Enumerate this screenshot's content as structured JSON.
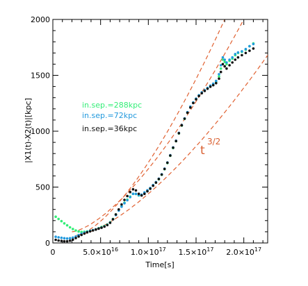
{
  "chart_data": {
    "type": "scatter",
    "xlabel": "Time[s]",
    "ylabel": "|X1(t)-X2(t)|[kpc]",
    "xlim": [
      0,
      2.25e+17
    ],
    "ylim": [
      0,
      2000
    ],
    "x_tick_labels": [
      {
        "value": 0,
        "label": "0"
      },
      {
        "value": 5e+16,
        "base": "5.0×10",
        "exp": "16"
      },
      {
        "value": 1e+17,
        "base": "1.0×10",
        "exp": "17"
      },
      {
        "value": 1.5e+17,
        "base": "1.5×10",
        "exp": "17"
      },
      {
        "value": 2e+17,
        "base": "2.0×10",
        "exp": "17"
      }
    ],
    "y_ticks": [
      0,
      500,
      1000,
      1500,
      2000
    ],
    "grid": false,
    "legend_position": "left",
    "annotation": {
      "base": "t",
      "exp": "3/2",
      "x": 1.6e+17,
      "y": 800
    },
    "colors": {
      "green": "#33ee77",
      "blue": "#2299dd",
      "black": "#111111",
      "fit": "#e06030"
    },
    "series": [
      {
        "name": "in.sep.=288kpc",
        "color": "#33ee77",
        "points": [
          [
            3000000000000000.0,
            235
          ],
          [
            6000000000000000.0,
            215
          ],
          [
            9000000000000000.0,
            195
          ],
          [
            1.2e+16,
            175
          ],
          [
            1.5e+16,
            158
          ],
          [
            1.8e+16,
            140
          ],
          [
            2.1e+16,
            125
          ],
          [
            2.4e+16,
            112
          ],
          [
            2.7e+16,
            103
          ],
          [
            3e+16,
            98
          ],
          [
            3.3e+16,
            100
          ],
          [
            3.6e+16,
            104
          ],
          [
            3.9e+16,
            109
          ],
          [
            4.2e+16,
            115
          ],
          [
            4.5e+16,
            122
          ],
          [
            4.8e+16,
            132
          ],
          [
            5.1e+16,
            142
          ],
          [
            5.4e+16,
            152
          ],
          [
            5.7e+16,
            165
          ],
          [
            6e+16,
            185
          ],
          [
            6.3e+16,
            215
          ],
          [
            6.6e+16,
            255
          ],
          [
            6.9e+16,
            295
          ],
          [
            7.2e+16,
            330
          ],
          [
            7.5e+16,
            360
          ],
          [
            7.8e+16,
            388
          ],
          [
            8.1e+16,
            415
          ],
          [
            8.4e+16,
            440
          ],
          [
            8.7e+16,
            438
          ],
          [
            9e+16,
            425
          ],
          [
            9.3e+16,
            430
          ],
          [
            9.6e+16,
            450
          ],
          [
            9.9e+16,
            470
          ],
          [
            1.02e+17,
            490
          ],
          [
            1.05e+17,
            515
          ],
          [
            1.08e+17,
            540
          ],
          [
            1.11e+17,
            570
          ],
          [
            1.14e+17,
            610
          ],
          [
            1.17e+17,
            660
          ],
          [
            1.2e+17,
            715
          ],
          [
            1.23e+17,
            780
          ],
          [
            1.26e+17,
            850
          ],
          [
            1.29e+17,
            910
          ],
          [
            1.32e+17,
            980
          ],
          [
            1.35e+17,
            1050
          ],
          [
            1.38e+17,
            1110
          ],
          [
            1.41e+17,
            1165
          ],
          [
            1.44e+17,
            1215
          ],
          [
            1.47e+17,
            1255
          ],
          [
            1.5e+17,
            1290
          ],
          [
            1.53e+17,
            1320
          ],
          [
            1.56e+17,
            1345
          ],
          [
            1.59e+17,
            1365
          ],
          [
            1.62e+17,
            1385
          ],
          [
            1.65e+17,
            1405
          ],
          [
            1.68e+17,
            1420
          ],
          [
            1.71e+17,
            1440
          ],
          [
            1.74e+17,
            1490
          ],
          [
            1.76e+17,
            1560
          ],
          [
            1.78e+17,
            1640
          ],
          [
            1.8e+17,
            1620
          ],
          [
            1.82e+17,
            1600
          ],
          [
            1.85e+17,
            1630
          ],
          [
            1.88e+17,
            1650
          ],
          [
            1.91e+17,
            1680
          ],
          [
            1.94e+17,
            1700
          ],
          [
            1.98e+17,
            1710
          ],
          [
            2.02e+17,
            1730
          ],
          [
            2.06e+17,
            1760
          ],
          [
            2.1e+17,
            1785
          ]
        ]
      },
      {
        "name": "in.sep.=72kpc",
        "color": "#2299dd",
        "points": [
          [
            3000000000000000.0,
            55
          ],
          [
            6000000000000000.0,
            50
          ],
          [
            9000000000000000.0,
            46
          ],
          [
            1.2e+16,
            42
          ],
          [
            1.5e+16,
            40
          ],
          [
            1.8e+16,
            42
          ],
          [
            2.1e+16,
            48
          ],
          [
            2.4e+16,
            58
          ],
          [
            2.7e+16,
            70
          ],
          [
            3e+16,
            82
          ],
          [
            3.3e+16,
            92
          ],
          [
            3.6e+16,
            100
          ],
          [
            3.9e+16,
            108
          ],
          [
            4.2e+16,
            115
          ],
          [
            4.5e+16,
            122
          ],
          [
            4.8e+16,
            130
          ],
          [
            5.1e+16,
            138
          ],
          [
            5.4e+16,
            148
          ],
          [
            5.7e+16,
            162
          ],
          [
            6e+16,
            182
          ],
          [
            6.3e+16,
            212
          ],
          [
            6.6e+16,
            250
          ],
          [
            6.9e+16,
            290
          ],
          [
            7.2e+16,
            325
          ],
          [
            7.5e+16,
            355
          ],
          [
            7.8e+16,
            382
          ],
          [
            8.1e+16,
            410
          ],
          [
            8.4e+16,
            440
          ],
          [
            8.7e+16,
            440
          ],
          [
            9e+16,
            428
          ],
          [
            9.3e+16,
            432
          ],
          [
            9.6e+16,
            452
          ],
          [
            9.9e+16,
            472
          ],
          [
            1.02e+17,
            492
          ],
          [
            1.05e+17,
            518
          ],
          [
            1.08e+17,
            545
          ],
          [
            1.11e+17,
            575
          ],
          [
            1.14e+17,
            615
          ],
          [
            1.17e+17,
            665
          ],
          [
            1.2e+17,
            720
          ],
          [
            1.23e+17,
            785
          ],
          [
            1.26e+17,
            855
          ],
          [
            1.29e+17,
            915
          ],
          [
            1.32e+17,
            985
          ],
          [
            1.35e+17,
            1055
          ],
          [
            1.38e+17,
            1115
          ],
          [
            1.41e+17,
            1170
          ],
          [
            1.44e+17,
            1220
          ],
          [
            1.47e+17,
            1258
          ],
          [
            1.5e+17,
            1292
          ],
          [
            1.53e+17,
            1322
          ],
          [
            1.56e+17,
            1347
          ],
          [
            1.59e+17,
            1367
          ],
          [
            1.62e+17,
            1387
          ],
          [
            1.65e+17,
            1408
          ],
          [
            1.68e+17,
            1425
          ],
          [
            1.71e+17,
            1450
          ],
          [
            1.74e+17,
            1510
          ],
          [
            1.76e+17,
            1590
          ],
          [
            1.78e+17,
            1660
          ],
          [
            1.8e+17,
            1640
          ],
          [
            1.82e+17,
            1615
          ],
          [
            1.85e+17,
            1640
          ],
          [
            1.88e+17,
            1660
          ],
          [
            1.91e+17,
            1690
          ],
          [
            1.94e+17,
            1705
          ],
          [
            1.98e+17,
            1715
          ],
          [
            2.02e+17,
            1735
          ],
          [
            2.06e+17,
            1760
          ],
          [
            2.1e+17,
            1780
          ]
        ]
      },
      {
        "name": "in.sep.=36kpc",
        "color": "#111111",
        "points": [
          [
            3000000000000000.0,
            28
          ],
          [
            6000000000000000.0,
            22
          ],
          [
            9000000000000000.0,
            18
          ],
          [
            1.2e+16,
            15
          ],
          [
            1.5e+16,
            15
          ],
          [
            1.8e+16,
            20
          ],
          [
            2.1e+16,
            30
          ],
          [
            2.4e+16,
            44
          ],
          [
            2.7e+16,
            58
          ],
          [
            3e+16,
            72
          ],
          [
            3.3e+16,
            84
          ],
          [
            3.6e+16,
            95
          ],
          [
            3.9e+16,
            104
          ],
          [
            4.2e+16,
            112
          ],
          [
            4.5e+16,
            120
          ],
          [
            4.8e+16,
            128
          ],
          [
            5.1e+16,
            136
          ],
          [
            5.4e+16,
            146
          ],
          [
            5.7e+16,
            160
          ],
          [
            6e+16,
            180
          ],
          [
            6.3e+16,
            212
          ],
          [
            6.6e+16,
            255
          ],
          [
            6.9e+16,
            300
          ],
          [
            7.2e+16,
            345
          ],
          [
            7.5e+16,
            385
          ],
          [
            7.8e+16,
            420
          ],
          [
            8.1e+16,
            455
          ],
          [
            8.4e+16,
            480
          ],
          [
            8.7e+16,
            470
          ],
          [
            9e+16,
            440
          ],
          [
            9.3e+16,
            425
          ],
          [
            9.6e+16,
            440
          ],
          [
            9.9e+16,
            462
          ],
          [
            1.02e+17,
            485
          ],
          [
            1.05e+17,
            512
          ],
          [
            1.08e+17,
            540
          ],
          [
            1.11e+17,
            572
          ],
          [
            1.14e+17,
            612
          ],
          [
            1.17e+17,
            662
          ],
          [
            1.2e+17,
            718
          ],
          [
            1.23e+17,
            782
          ],
          [
            1.26e+17,
            852
          ],
          [
            1.29e+17,
            912
          ],
          [
            1.32e+17,
            982
          ],
          [
            1.35e+17,
            1052
          ],
          [
            1.38e+17,
            1112
          ],
          [
            1.41e+17,
            1165
          ],
          [
            1.44e+17,
            1212
          ],
          [
            1.47e+17,
            1252
          ],
          [
            1.5e+17,
            1285
          ],
          [
            1.53e+17,
            1315
          ],
          [
            1.56e+17,
            1340
          ],
          [
            1.59e+17,
            1360
          ],
          [
            1.62e+17,
            1380
          ],
          [
            1.65e+17,
            1398
          ],
          [
            1.68e+17,
            1412
          ],
          [
            1.71e+17,
            1430
          ],
          [
            1.74e+17,
            1470
          ],
          [
            1.76e+17,
            1530
          ],
          [
            1.78e+17,
            1600
          ],
          [
            1.8e+17,
            1580
          ],
          [
            1.82e+17,
            1560
          ],
          [
            1.85e+17,
            1590
          ],
          [
            1.88e+17,
            1615
          ],
          [
            1.91e+17,
            1640
          ],
          [
            1.94e+17,
            1660
          ],
          [
            1.98e+17,
            1680
          ],
          [
            2.02e+17,
            1700
          ],
          [
            2.06e+17,
            1720
          ],
          [
            2.1e+17,
            1740
          ]
        ]
      }
    ],
    "fit_curves": [
      {
        "t0": 2e+16,
        "y0": 100,
        "t1": 2e+17,
        "y1": 2000
      },
      {
        "t0": 2.5e+16,
        "y0": 70,
        "t1": 2.2e+17,
        "y1": 1620
      },
      {
        "t0": 2.5e+16,
        "y0": 70,
        "t1": 1.8e+17,
        "y1": 2000
      }
    ]
  }
}
